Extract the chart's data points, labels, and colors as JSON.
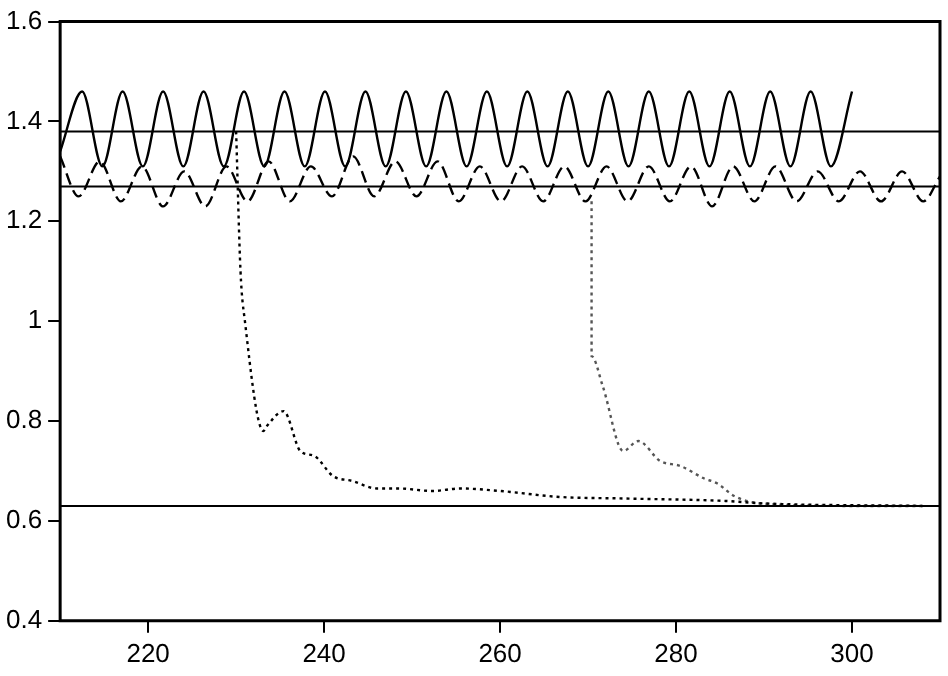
{
  "chart_data": {
    "type": "line",
    "xlim": [
      210,
      310
    ],
    "ylim": [
      0.4,
      1.6
    ],
    "xticks": [
      220,
      240,
      260,
      280,
      300
    ],
    "yticks": [
      0.4,
      0.6,
      0.8,
      1,
      1.2,
      1.4,
      1.6
    ],
    "grid": false,
    "legend": false,
    "marker": "none",
    "ref_lines": [
      {
        "axis": "y",
        "value": 1.38,
        "color": "#000000"
      },
      {
        "axis": "y",
        "value": 1.27,
        "color": "#000000"
      },
      {
        "axis": "y",
        "value": 0.63,
        "color": "#000000"
      }
    ],
    "series": [
      {
        "color": "#000000",
        "line_style": "solid",
        "x": [
          210,
          212.5,
          214.8,
          217.1,
          219.4,
          221.7,
          224,
          226.3,
          228.6,
          230.9,
          233.2,
          235.5,
          237.8,
          240.1,
          242.4,
          244.7,
          247,
          249.3,
          251.6,
          253.9,
          256.2,
          258.5,
          260.8,
          263.1,
          265.4,
          267.7,
          270,
          272.3,
          274.6,
          276.9,
          279.2,
          281.5,
          283.8,
          286.1,
          288.4,
          290.7,
          293,
          295.3,
          297.6,
          300
        ],
        "values": [
          1.34,
          1.46,
          1.31,
          1.46,
          1.31,
          1.46,
          1.31,
          1.46,
          1.31,
          1.46,
          1.31,
          1.46,
          1.31,
          1.46,
          1.31,
          1.46,
          1.31,
          1.46,
          1.31,
          1.46,
          1.31,
          1.46,
          1.31,
          1.46,
          1.31,
          1.46,
          1.31,
          1.46,
          1.31,
          1.46,
          1.31,
          1.46,
          1.31,
          1.46,
          1.31,
          1.46,
          1.31,
          1.46,
          1.31,
          1.46
        ]
      },
      {
        "color": "#000000",
        "line_style": "dashed",
        "x": [
          210,
          212.1,
          214.5,
          216.9,
          219.3,
          221.7,
          224.1,
          226.5,
          228.9,
          231.3,
          233.7,
          236.1,
          238.5,
          240.9,
          243.3,
          245.7,
          248.1,
          250.5,
          252.9,
          255.3,
          257.7,
          260.1,
          262.5,
          264.9,
          267.3,
          269.7,
          272.1,
          274.5,
          276.9,
          279.3,
          281.7,
          284.1,
          286.5,
          288.9,
          291.3,
          293.7,
          296.1,
          298.5,
          300.9,
          303.3,
          305.7,
          308.1,
          310
        ],
        "values": [
          1.33,
          1.25,
          1.32,
          1.24,
          1.31,
          1.23,
          1.3,
          1.23,
          1.31,
          1.24,
          1.32,
          1.24,
          1.31,
          1.25,
          1.33,
          1.25,
          1.32,
          1.25,
          1.32,
          1.24,
          1.31,
          1.24,
          1.31,
          1.24,
          1.31,
          1.24,
          1.31,
          1.24,
          1.31,
          1.24,
          1.31,
          1.23,
          1.31,
          1.24,
          1.31,
          1.24,
          1.3,
          1.24,
          1.3,
          1.24,
          1.3,
          1.24,
          1.29
        ]
      },
      {
        "color": "#000000",
        "line_style": "dotted",
        "x": [
          230,
          230.5,
          231,
          233.1,
          233.5,
          235.4,
          237.3,
          238.9,
          241,
          243.2,
          246,
          248.5,
          252.3,
          255.5,
          260,
          266.8,
          274,
          285.6,
          290,
          308
        ],
        "values": [
          1.38,
          1.1,
          1.0,
          0.78,
          0.79,
          0.82,
          0.74,
          0.73,
          0.69,
          0.68,
          0.665,
          0.665,
          0.66,
          0.665,
          0.66,
          0.648,
          0.645,
          0.64,
          0.635,
          0.63
        ]
      },
      {
        "color": "#555555",
        "line_style": "dotted",
        "x": [
          270.4,
          270.4,
          271.7,
          274,
          275.7,
          278.2,
          280.5,
          283.2,
          284.7,
          286.6,
          289.7,
          301,
          308
        ],
        "values": [
          1.24,
          0.93,
          0.868,
          0.74,
          0.76,
          0.72,
          0.71,
          0.685,
          0.675,
          0.65,
          0.635,
          0.63,
          0.63
        ]
      }
    ]
  }
}
